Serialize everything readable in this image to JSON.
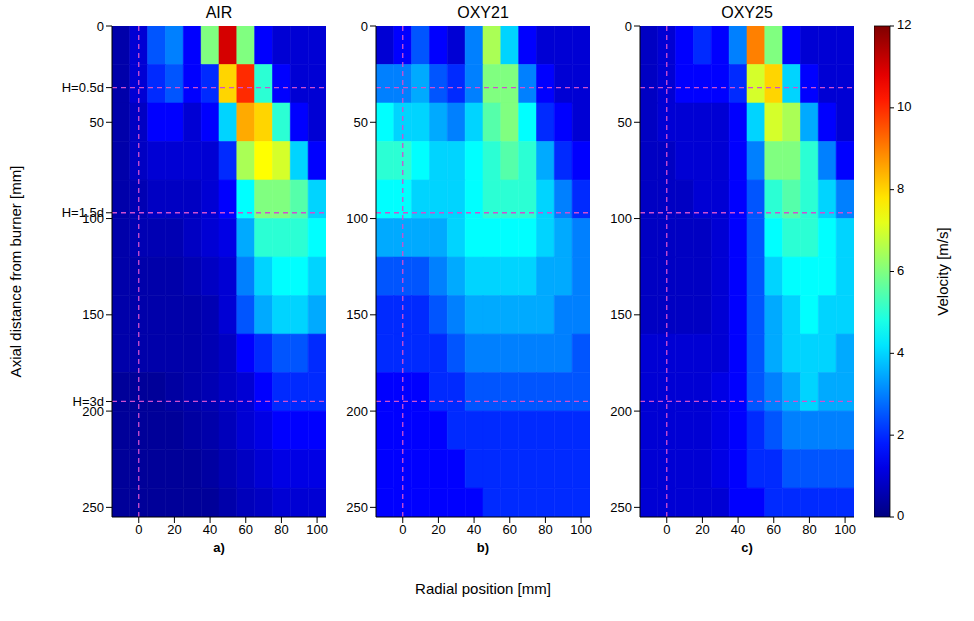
{
  "chart_data": [
    {
      "type": "heatmap",
      "title": "AIR",
      "panel": "a)",
      "xlim": [
        -15,
        105
      ],
      "ylim": [
        0,
        255
      ],
      "xticks": [
        0,
        20,
        40,
        60,
        80,
        100
      ],
      "yticks": [
        0,
        {
          "value": 32,
          "label": "H=0.5d"
        },
        50,
        {
          "value": 97,
          "label": "H=1.5d"
        },
        100,
        150,
        {
          "value": 195,
          "label": "H=3d"
        },
        200,
        250
      ],
      "reference_lines": {
        "x": [
          0
        ],
        "y": [
          32,
          97,
          195
        ]
      },
      "x": [
        -10,
        0,
        10,
        20,
        30,
        40,
        50,
        60,
        70,
        80,
        90,
        100
      ],
      "y": [
        10,
        30,
        50,
        70,
        90,
        110,
        130,
        150,
        170,
        190,
        210,
        230,
        250
      ],
      "values": [
        [
          0.5,
          1,
          2.5,
          3,
          1.5,
          6,
          11,
          6,
          1.5,
          1,
          1,
          1
        ],
        [
          0.5,
          1,
          2,
          2.5,
          1.5,
          2,
          8,
          10,
          5,
          1.5,
          1,
          1
        ],
        [
          0.5,
          0.8,
          1.5,
          1.5,
          1,
          1.5,
          4,
          8.5,
          8,
          5,
          1.5,
          1
        ],
        [
          0.5,
          0.8,
          1,
          1,
          1,
          1,
          2,
          6.5,
          7.5,
          7,
          4,
          1.5
        ],
        [
          0.5,
          0.6,
          0.8,
          0.8,
          0.8,
          1,
          1.5,
          4.5,
          6,
          6,
          5.5,
          4
        ],
        [
          0.5,
          0.6,
          0.6,
          0.6,
          0.8,
          1,
          1.2,
          3.5,
          5,
          5,
          5,
          4.5
        ],
        [
          0.5,
          0.5,
          0.5,
          0.5,
          0.6,
          0.8,
          1,
          3,
          4,
          4.5,
          4.5,
          4
        ],
        [
          0.5,
          0.5,
          0.5,
          0.5,
          0.5,
          0.6,
          1,
          2.5,
          3.5,
          4,
          4,
          3.5
        ],
        [
          0.5,
          0.5,
          0.5,
          0.5,
          0.5,
          0.6,
          0.8,
          1.5,
          2,
          2.5,
          2.5,
          2
        ],
        [
          0.3,
          0.3,
          0.3,
          0.4,
          0.5,
          0.6,
          0.8,
          1,
          1.5,
          2,
          2,
          2
        ],
        [
          0.3,
          0.3,
          0.3,
          0.3,
          0.4,
          0.5,
          0.7,
          1,
          1.2,
          1.5,
          1.5,
          1.5
        ],
        [
          0.3,
          0.3,
          0.3,
          0.3,
          0.3,
          0.4,
          0.6,
          0.8,
          1,
          1.2,
          1.2,
          1.2
        ],
        [
          0.3,
          0.3,
          0.3,
          0.3,
          0.3,
          0.3,
          0.5,
          0.7,
          0.8,
          1,
          1,
          1
        ]
      ]
    },
    {
      "type": "heatmap",
      "title": "OXY21",
      "panel": "b)",
      "xlim": [
        -15,
        105
      ],
      "ylim": [
        0,
        255
      ],
      "xticks": [
        0,
        20,
        40,
        60,
        80,
        100
      ],
      "yticks": [
        0,
        50,
        100,
        150,
        200,
        250
      ],
      "reference_lines": {
        "x": [
          0
        ],
        "y": [
          32,
          97,
          195
        ]
      },
      "x": [
        -10,
        0,
        10,
        20,
        30,
        40,
        50,
        60,
        70,
        80,
        90,
        100
      ],
      "y": [
        10,
        30,
        50,
        70,
        90,
        110,
        130,
        150,
        170,
        190,
        210,
        230,
        250
      ],
      "values": [
        [
          1,
          1.5,
          2.5,
          1.5,
          1,
          3,
          6.5,
          4,
          1.5,
          1,
          1,
          1
        ],
        [
          3,
          3,
          3.5,
          2.5,
          2,
          3,
          6,
          6,
          3,
          1.5,
          1,
          1
        ],
        [
          4.5,
          4,
          4,
          3.5,
          3,
          4,
          5.5,
          6,
          4.5,
          2,
          1.5,
          1
        ],
        [
          5,
          5,
          4.5,
          4,
          4,
          4.5,
          5,
          5.5,
          5,
          3.5,
          2,
          1.5
        ],
        [
          4.5,
          4.5,
          4,
          4,
          4,
          4.5,
          5,
          5,
          5,
          4,
          3,
          2
        ],
        [
          3.5,
          3.5,
          3.5,
          3.5,
          4,
          4.5,
          4.5,
          4.5,
          4.5,
          4,
          3.5,
          3
        ],
        [
          2.5,
          2.5,
          2.5,
          3,
          3.5,
          4,
          4,
          4,
          4,
          3.5,
          3.5,
          3
        ],
        [
          2,
          2,
          2,
          2.5,
          3,
          3.5,
          3.5,
          3.5,
          3.5,
          3.5,
          3,
          3
        ],
        [
          2,
          2,
          2,
          2,
          2.5,
          3,
          3,
          3,
          3,
          3,
          3,
          2.5
        ],
        [
          1.5,
          1.5,
          1.5,
          2,
          2,
          2.5,
          2.5,
          2.5,
          2.5,
          2.5,
          2.5,
          2.5
        ],
        [
          1.5,
          1.5,
          1.5,
          1.5,
          2,
          2,
          2,
          2,
          2,
          2,
          2,
          2
        ],
        [
          1.5,
          1.5,
          1.5,
          1.5,
          1.5,
          2,
          2,
          2,
          2,
          2,
          2,
          2
        ],
        [
          1.5,
          1.5,
          1.5,
          1.5,
          1.5,
          1.5,
          2,
          2,
          2,
          2,
          2,
          2
        ]
      ]
    },
    {
      "type": "heatmap",
      "title": "OXY25",
      "panel": "c)",
      "xlim": [
        -15,
        105
      ],
      "ylim": [
        0,
        255
      ],
      "xticks": [
        0,
        20,
        40,
        60,
        80,
        100
      ],
      "yticks": [
        0,
        50,
        100,
        150,
        200,
        250
      ],
      "reference_lines": {
        "x": [
          0
        ],
        "y": [
          32,
          97,
          195
        ]
      },
      "x": [
        -10,
        0,
        10,
        20,
        30,
        40,
        50,
        60,
        70,
        80,
        90,
        100
      ],
      "y": [
        10,
        30,
        50,
        70,
        90,
        110,
        130,
        150,
        170,
        190,
        210,
        230,
        250
      ],
      "values": [
        [
          0.8,
          1,
          1.5,
          2,
          1.5,
          3,
          9,
          6,
          1.5,
          1,
          1,
          1
        ],
        [
          0.8,
          1,
          1.5,
          1.5,
          1.5,
          2,
          7,
          8,
          4,
          1.5,
          1,
          1
        ],
        [
          0.8,
          1,
          1,
          1,
          1,
          1.5,
          4,
          7,
          6.5,
          3.5,
          1.5,
          1
        ],
        [
          0.8,
          0.8,
          1,
          1,
          1,
          1.5,
          3,
          6,
          6,
          5,
          3,
          1.5
        ],
        [
          0.8,
          0.8,
          0.8,
          1,
          1,
          1.5,
          2.5,
          5,
          5.5,
          5,
          4,
          3
        ],
        [
          0.8,
          0.8,
          0.8,
          0.8,
          1,
          1.5,
          2.5,
          4.5,
          5,
          5,
          4.5,
          4
        ],
        [
          0.8,
          0.8,
          0.8,
          0.8,
          1,
          1.5,
          2.5,
          4,
          4.5,
          4.5,
          4.5,
          4
        ],
        [
          0.8,
          0.8,
          0.8,
          0.8,
          1,
          1.5,
          2.5,
          3.5,
          4,
          4.5,
          4,
          4
        ],
        [
          1,
          1,
          1,
          1,
          1,
          1.5,
          2.5,
          3.5,
          4,
          4,
          4,
          3.5
        ],
        [
          1,
          1,
          1,
          1,
          1.2,
          1.5,
          2.5,
          3,
          3.5,
          4,
          3.5,
          3.5
        ],
        [
          1,
          1,
          1,
          1,
          1.2,
          1.5,
          2,
          2.5,
          3,
          3,
          3,
          3
        ],
        [
          1,
          1,
          1,
          1,
          1.2,
          1.5,
          2,
          2,
          2.5,
          2.5,
          2.5,
          2.5
        ],
        [
          1,
          1,
          1,
          1,
          1,
          1.5,
          1.5,
          2,
          2,
          2,
          2,
          2
        ]
      ]
    }
  ],
  "x_label": "Radial position [mm]",
  "y_label": "Axial distance from burner [mm]",
  "colorbar": {
    "label": "Velocity [m/s]",
    "range": [
      0,
      12
    ],
    "ticks": [
      0,
      2,
      4,
      6,
      8,
      10,
      12
    ]
  }
}
